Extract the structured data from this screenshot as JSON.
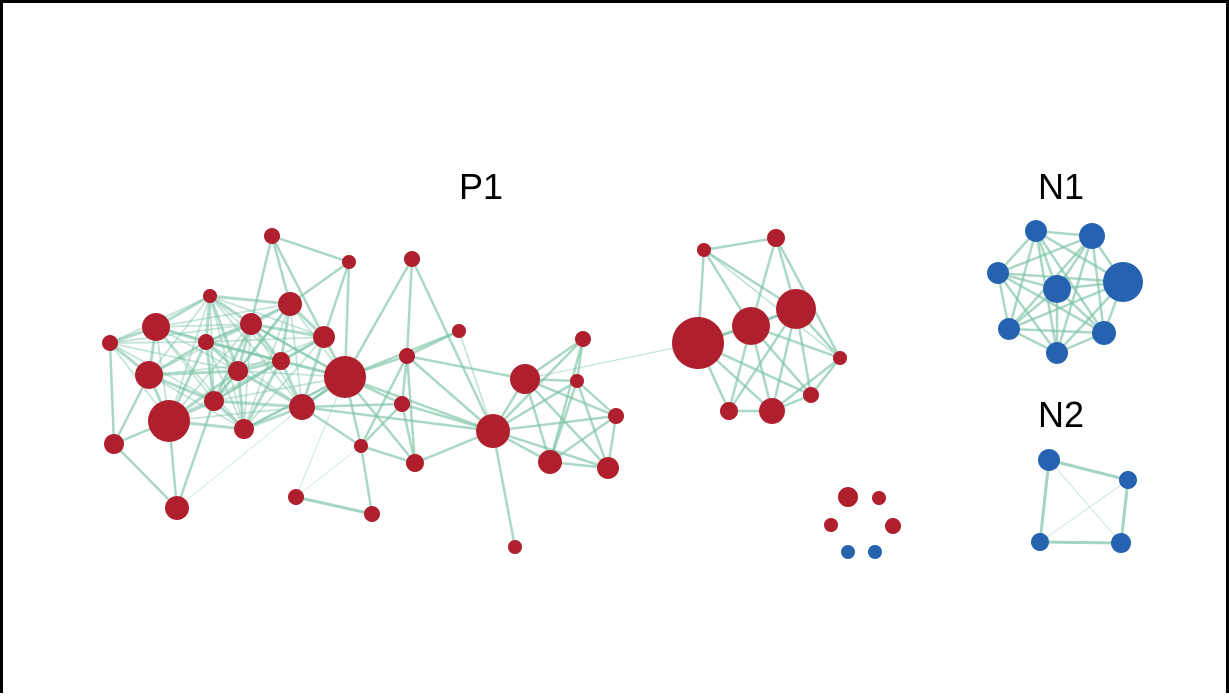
{
  "figure": {
    "clusters": [
      {
        "id": "P1",
        "label": "P1",
        "color": "#b01f2e"
      },
      {
        "id": "N1",
        "label": "N1",
        "color": "#2563b0"
      },
      {
        "id": "N2",
        "label": "N2",
        "color": "#2563b0"
      }
    ],
    "colors": {
      "positive_node": "#b01f2e",
      "negative_node": "#2563b0",
      "edge": "#7cc3a6",
      "frame": "#000000"
    }
  }
}
